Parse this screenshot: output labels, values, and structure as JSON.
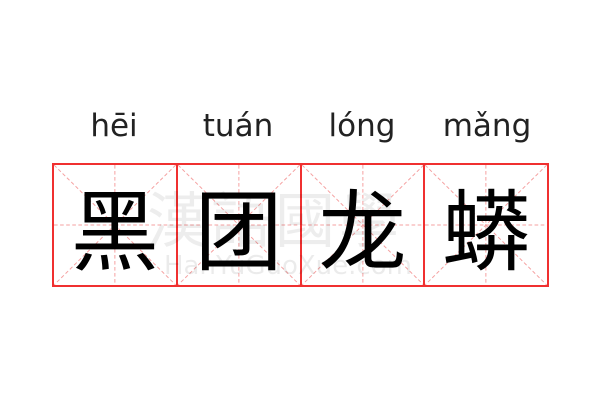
{
  "pinyin": [
    "hēi",
    "tuán",
    "lóng",
    "mǎng"
  ],
  "characters": [
    "黑",
    "团",
    "龙",
    "蟒"
  ],
  "watermark": {
    "chinese": "漢語國學",
    "latin": "HanYuGuoXue.com"
  },
  "colors": {
    "grid_border": "#f03030",
    "guide_lines": "#f5a0a0"
  }
}
